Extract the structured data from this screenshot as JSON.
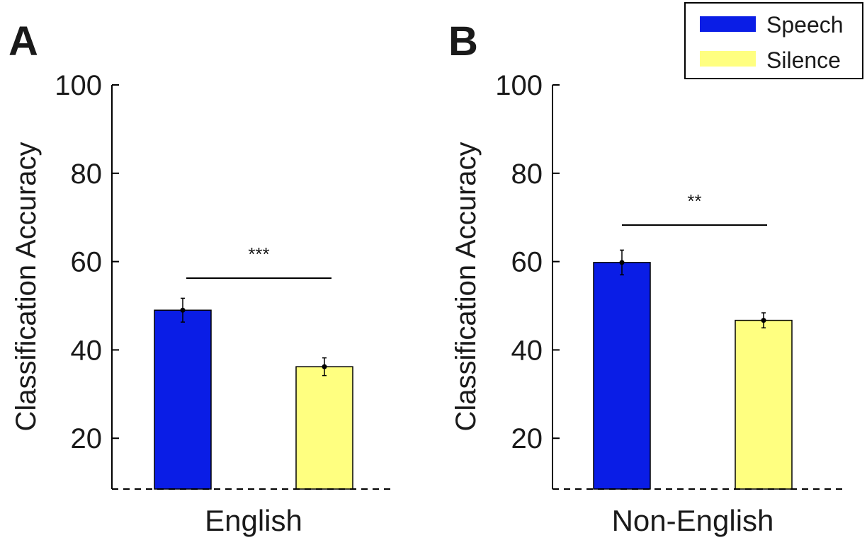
{
  "legend": {
    "items": [
      {
        "label": "Speech",
        "color": "#0a1de6"
      },
      {
        "label": "Silence",
        "color": "#ffff80"
      }
    ]
  },
  "chart_data": [
    {
      "type": "bar",
      "panel": "A",
      "categories": [
        "English"
      ],
      "series": [
        {
          "name": "Speech",
          "values": [
            49
          ],
          "error": [
            2.7
          ]
        },
        {
          "name": "Silence",
          "values": [
            36.2
          ],
          "error": [
            2.0
          ]
        }
      ],
      "significance": "***",
      "ylabel": "Classification Accuracy",
      "yticks": [
        20,
        40,
        60,
        80,
        100
      ],
      "ylim": [
        8.5,
        100
      ],
      "chance_level": 8.5,
      "grid": false
    },
    {
      "type": "bar",
      "panel": "B",
      "categories": [
        "Non-English"
      ],
      "series": [
        {
          "name": "Speech",
          "values": [
            59.8
          ],
          "error": [
            2.8
          ]
        },
        {
          "name": "Silence",
          "values": [
            46.7
          ],
          "error": [
            1.7
          ]
        }
      ],
      "significance": "**",
      "ylabel": "Classification Accuracy",
      "yticks": [
        20,
        40,
        60,
        80,
        100
      ],
      "ylim": [
        8.5,
        100
      ],
      "chance_level": 8.5,
      "grid": false
    }
  ]
}
